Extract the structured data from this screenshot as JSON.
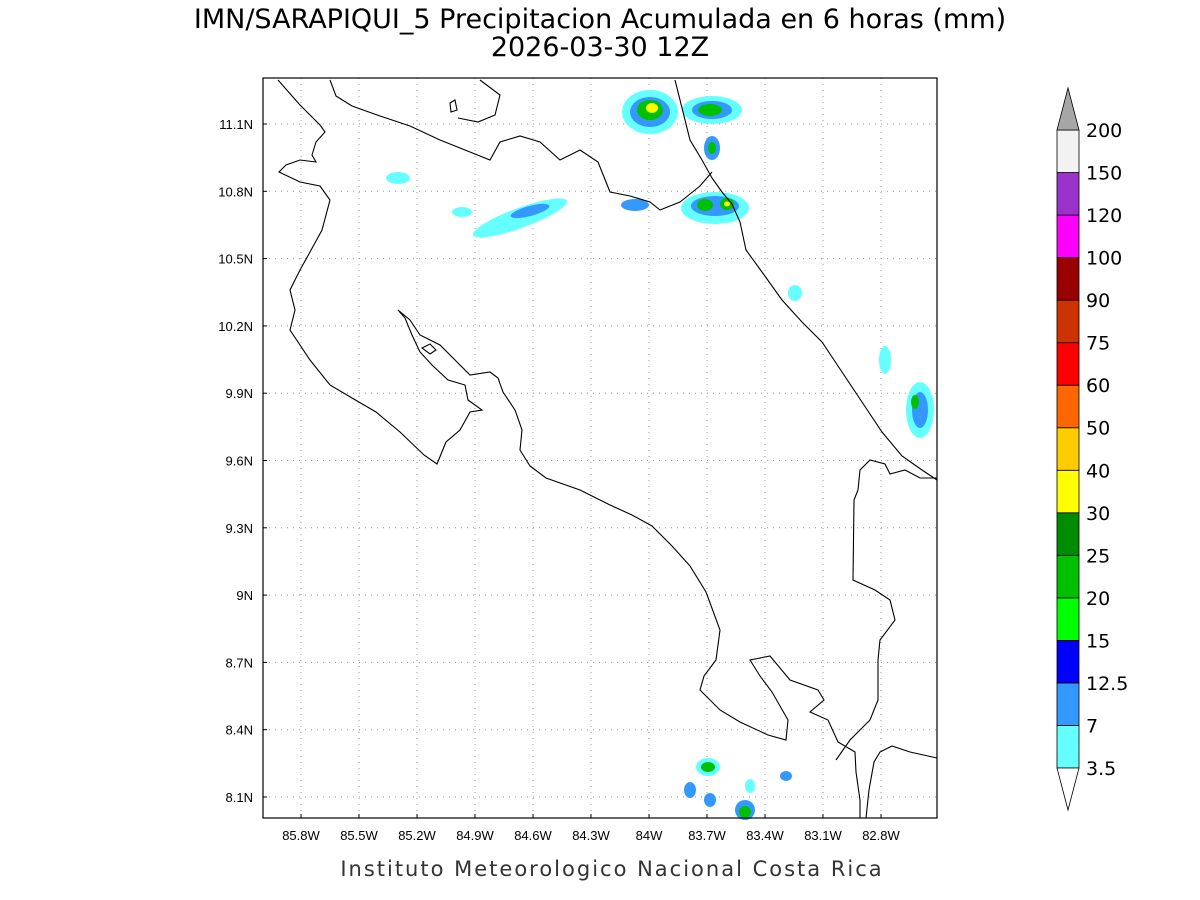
{
  "header": {
    "title": "IMN/SARAPIQUI_5 Precipitacion Acumulada en 6 horas (mm)",
    "subtitle": "2026-03-30 12Z"
  },
  "map": {
    "lon_labels": [
      "85.8W",
      "85.5W",
      "85.2W",
      "84.9W",
      "84.6W",
      "84.3W",
      "84W",
      "83.7W",
      "83.4W",
      "83.1W",
      "82.8W"
    ],
    "lat_labels": [
      "11.1N",
      "10.8N",
      "10.5N",
      "10.2N",
      "9.9N",
      "9.6N",
      "9.3N",
      "9N",
      "8.7N",
      "8.4N",
      "8.1N"
    ]
  },
  "colorbar": {
    "levels": [
      3.5,
      7,
      12.5,
      15,
      20,
      25,
      30,
      40,
      50,
      60,
      75,
      90,
      100,
      120,
      150,
      200
    ],
    "colors": [
      "#66ffff",
      "#3399ff",
      "#0000ff",
      "#00ff00",
      "#00c000",
      "#008c00",
      "#ffff00",
      "#ffcc00",
      "#ff6600",
      "#ff0000",
      "#cc3300",
      "#990000",
      "#ff00ff",
      "#9933cc",
      "#f2f2f2"
    ],
    "under_color": "#ffffff",
    "over_color": "#a6a6a6"
  },
  "footer": "Instituto Meteorologico Nacional Costa Rica"
}
